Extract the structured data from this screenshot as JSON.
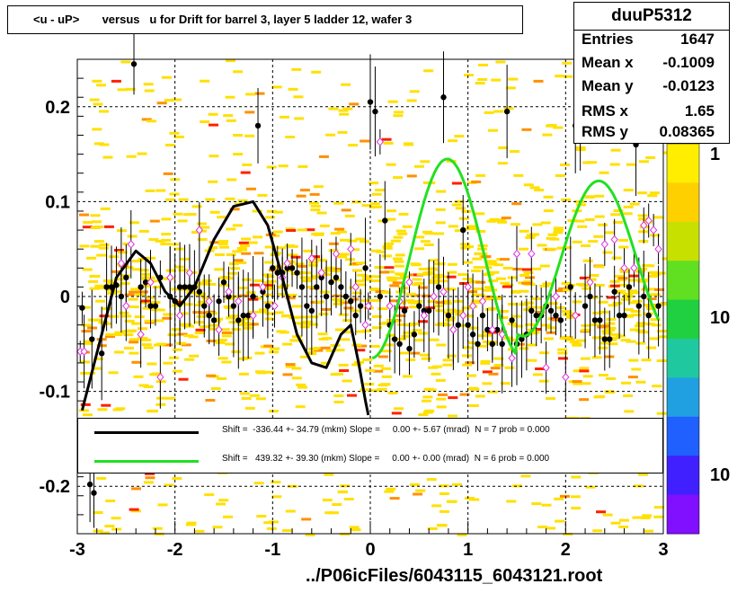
{
  "title": "<u - uP>       versus   u for Drift for barrel 3, layer 5 ladder 12, wafer 3",
  "stats": {
    "name": "duuP5312",
    "rows": [
      {
        "label": "Entries",
        "value": "1647"
      },
      {
        "label": "Mean x",
        "value": "-0.1009"
      },
      {
        "label": "Mean y",
        "value": "-0.0123"
      },
      {
        "label": "RMS x",
        "value": "1.65"
      },
      {
        "label": "RMS y",
        "value": "0.08365"
      }
    ]
  },
  "footer": "../P06icFiles/6043115_6043121.root",
  "fits": [
    {
      "color": "#000000",
      "text": "Shift =  -336.44 +- 34.79 (mkm) Slope =     0.00 +- 5.67 (mrad)  N = 7 prob = 0.000"
    },
    {
      "color": "#22e022",
      "text": "Shift =   439.32 +- 39.30 (mkm) Slope =     0.00 +- 0.00 (mrad)  N = 6 prob = 0.000"
    }
  ],
  "colors": {
    "low": "#ffe000",
    "mid": "#ff9000",
    "high": "#ff2000",
    "open_marker": "#e030e0"
  },
  "chart_data": {
    "type": "scatter",
    "title": "<u - uP>       versus   u for Drift for barrel 3, layer 5 ladder 12, wafer 3",
    "xlabel": "",
    "ylabel": "",
    "xlim": [
      -3,
      3
    ],
    "ylim": [
      -0.25,
      0.25
    ],
    "x_ticks": [
      "-3",
      "-2",
      "-1",
      "0",
      "1",
      "2",
      "3"
    ],
    "y_ticks": [
      "-0.2",
      "-0.1",
      "0",
      "0.1",
      "0.2"
    ],
    "color_scale_labels": [
      "1",
      "10",
      "10"
    ],
    "grid": true,
    "black_profile": [
      [
        -2.95,
        -0.012
      ],
      [
        -2.85,
        -0.045
      ],
      [
        -2.75,
        -0.06
      ],
      [
        -2.7,
        0.01
      ],
      [
        -2.65,
        0.01
      ],
      [
        -2.6,
        0.012
      ],
      [
        -2.55,
        0.0
      ],
      [
        -2.5,
        0.02
      ],
      [
        -2.42,
        0.245
      ],
      [
        -2.35,
        0.01
      ],
      [
        -2.3,
        0.015
      ],
      [
        -2.25,
        -0.01
      ],
      [
        -2.2,
        -0.01
      ],
      [
        -2.15,
        0.02
      ],
      [
        -2.05,
        0.0
      ],
      [
        -2.0,
        -0.005
      ],
      [
        -1.95,
        0.01
      ],
      [
        -1.9,
        0.01
      ],
      [
        -1.85,
        0.01
      ],
      [
        -1.8,
        0.01
      ],
      [
        -1.75,
        0.005
      ],
      [
        -1.7,
        -0.01
      ],
      [
        -1.65,
        -0.02
      ],
      [
        -1.6,
        -0.025
      ],
      [
        -1.55,
        -0.005
      ],
      [
        -1.5,
        0.015
      ],
      [
        -1.45,
        0.0
      ],
      [
        -1.4,
        -0.01
      ],
      [
        -1.35,
        -0.025
      ],
      [
        -1.3,
        -0.02
      ],
      [
        -1.25,
        -0.02
      ],
      [
        -1.2,
        0.0
      ],
      [
        -1.15,
        0.18
      ],
      [
        -1.1,
        0.005
      ],
      [
        -1.05,
        -0.01
      ],
      [
        -1.0,
        0.03
      ],
      [
        -0.95,
        0.025
      ],
      [
        -0.9,
        0.025
      ],
      [
        -0.85,
        0.03
      ],
      [
        -0.8,
        0.03
      ],
      [
        -0.75,
        0.025
      ],
      [
        -0.7,
        0.01
      ],
      [
        -0.65,
        -0.01
      ],
      [
        -0.6,
        -0.015
      ],
      [
        -0.55,
        0.01
      ],
      [
        -0.5,
        0.02
      ],
      [
        -0.45,
        0.0
      ],
      [
        -0.4,
        0.015
      ],
      [
        -0.35,
        0.02
      ],
      [
        -0.3,
        0.01
      ],
      [
        -0.25,
        0.0
      ],
      [
        -0.2,
        -0.005
      ],
      [
        -0.15,
        -0.02
      ],
      [
        -0.1,
        -0.01
      ],
      [
        -0.05,
        0.03
      ],
      [
        0.0,
        0.205
      ],
      [
        0.05,
        0.195
      ],
      [
        0.1,
        0.0
      ],
      [
        0.15,
        0.08
      ],
      [
        0.2,
        -0.03
      ],
      [
        0.25,
        -0.045
      ],
      [
        0.3,
        -0.05
      ],
      [
        0.35,
        -0.015
      ],
      [
        0.4,
        -0.055
      ],
      [
        0.45,
        -0.04
      ],
      [
        0.5,
        -0.01
      ],
      [
        0.55,
        -0.015
      ],
      [
        0.6,
        -0.015
      ],
      [
        0.7,
        0.01
      ],
      [
        0.75,
        0.21
      ],
      [
        0.8,
        -0.02
      ],
      [
        0.85,
        -0.035
      ],
      [
        0.9,
        -0.03
      ],
      [
        0.95,
        0.07
      ],
      [
        1.0,
        -0.03
      ],
      [
        1.05,
        -0.04
      ],
      [
        1.1,
        -0.05
      ],
      [
        1.15,
        -0.02
      ],
      [
        1.2,
        -0.035
      ],
      [
        1.25,
        -0.05
      ],
      [
        1.3,
        -0.035
      ],
      [
        1.35,
        -0.05
      ],
      [
        1.4,
        0.195
      ],
      [
        1.45,
        -0.025
      ],
      [
        1.5,
        -0.05
      ],
      [
        1.55,
        -0.045
      ],
      [
        1.6,
        -0.04
      ],
      [
        1.65,
        -0.015
      ],
      [
        1.7,
        -0.02
      ],
      [
        1.75,
        -0.02
      ],
      [
        1.8,
        -0.01
      ],
      [
        1.85,
        -0.015
      ],
      [
        1.9,
        -0.02
      ],
      [
        1.95,
        -0.025
      ],
      [
        2.05,
        0.01
      ],
      [
        2.1,
        0.18
      ],
      [
        2.15,
        0.18
      ],
      [
        2.2,
        -0.01
      ],
      [
        2.25,
        0.0
      ],
      [
        2.3,
        -0.025
      ],
      [
        2.35,
        -0.025
      ],
      [
        2.4,
        -0.045
      ],
      [
        2.45,
        -0.045
      ],
      [
        2.5,
        0.005
      ],
      [
        2.55,
        -0.02
      ],
      [
        2.6,
        -0.02
      ],
      [
        2.65,
        0.01
      ],
      [
        2.72,
        0.16
      ],
      [
        2.75,
        -0.01
      ],
      [
        2.8,
        0.0
      ],
      [
        2.85,
        -0.02
      ],
      [
        2.95,
        -0.01
      ],
      [
        -2.87,
        -0.198
      ],
      [
        -2.83,
        -0.207
      ]
    ],
    "open_markers": [
      [
        -2.97,
        -0.058
      ],
      [
        -2.93,
        -0.058
      ],
      [
        -2.55,
        0.035
      ],
      [
        -2.5,
        -0.01
      ],
      [
        -2.45,
        0.055
      ],
      [
        -2.35,
        -0.04
      ],
      [
        -2.25,
        0.015
      ],
      [
        -2.15,
        -0.085
      ],
      [
        -2.05,
        0.02
      ],
      [
        -1.95,
        -0.02
      ],
      [
        -1.85,
        0.025
      ],
      [
        -1.75,
        0.07
      ],
      [
        -1.65,
        -0.005
      ],
      [
        -1.55,
        -0.035
      ],
      [
        -1.45,
        0.005
      ],
      [
        -1.35,
        -0.005
      ],
      [
        -1.2,
        -0.02
      ],
      [
        -1.1,
        0.01
      ],
      [
        -0.98,
        -0.01
      ],
      [
        -0.9,
        0.02
      ],
      [
        -0.85,
        0.035
      ],
      [
        -0.6,
        0.04
      ],
      [
        -0.5,
        0.025
      ],
      [
        -0.35,
        0.045
      ],
      [
        -0.2,
        0.05
      ],
      [
        -0.15,
        0.01
      ],
      [
        -0.05,
        -0.03
      ],
      [
        -0.02,
        -0.01
      ],
      [
        0.1,
        0.163
      ],
      [
        0.2,
        -0.01
      ],
      [
        0.4,
        0.015
      ],
      [
        0.55,
        -0.02
      ],
      [
        0.65,
        0.0
      ],
      [
        0.75,
        0.005
      ],
      [
        0.85,
        -0.035
      ],
      [
        0.95,
        -0.02
      ],
      [
        1.05,
        -0.01
      ],
      [
        1.15,
        -0.005
      ],
      [
        1.25,
        -0.035
      ],
      [
        1.35,
        -0.04
      ],
      [
        1.45,
        -0.065
      ],
      [
        1.5,
        0.045
      ],
      [
        1.65,
        0.045
      ],
      [
        1.8,
        -0.075
      ],
      [
        1.9,
        0.0
      ],
      [
        2.0,
        -0.085
      ],
      [
        2.1,
        -0.02
      ],
      [
        2.25,
        0.015
      ],
      [
        2.4,
        0.055
      ],
      [
        2.5,
        0.06
      ],
      [
        2.6,
        0.03
      ],
      [
        2.7,
        0.03
      ],
      [
        2.8,
        0.075
      ],
      [
        2.85,
        0.08
      ],
      [
        2.9,
        0.07
      ],
      [
        2.95,
        0.05
      ],
      [
        1.0,
        0.01
      ],
      [
        0.3,
        -0.005
      ]
    ]
  }
}
